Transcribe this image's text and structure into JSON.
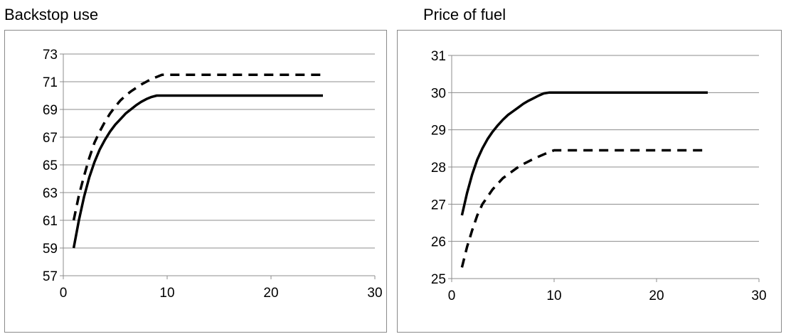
{
  "chart_data": [
    {
      "type": "line",
      "title": "Backstop use",
      "xlabel": "",
      "ylabel": "",
      "xlim": [
        0,
        30
      ],
      "ylim": [
        57,
        73
      ],
      "xticks": [
        0,
        10,
        20,
        30
      ],
      "yticks": [
        57,
        59,
        61,
        63,
        65,
        67,
        69,
        71,
        73
      ],
      "grid": "horizontal",
      "legend": "none",
      "series": [
        {
          "style": "solid",
          "color": "#000000",
          "x": [
            1,
            1.5,
            2,
            2.5,
            3,
            3.5,
            4,
            4.5,
            5,
            5.5,
            6,
            6.5,
            7,
            7.5,
            8,
            8.5,
            9,
            9.5,
            10,
            25
          ],
          "y": [
            59.0,
            61.0,
            62.7,
            64.1,
            65.2,
            66.1,
            66.8,
            67.4,
            67.9,
            68.3,
            68.7,
            69.0,
            69.3,
            69.55,
            69.75,
            69.9,
            70.0,
            70.0,
            70.0,
            70.0
          ]
        },
        {
          "style": "dashed",
          "color": "#000000",
          "x": [
            1,
            1.5,
            2,
            2.5,
            3,
            3.5,
            4,
            4.5,
            5,
            5.5,
            6,
            6.5,
            7,
            7.5,
            8,
            8.5,
            9,
            9.5,
            10,
            25
          ],
          "y": [
            61.0,
            62.8,
            64.2,
            65.5,
            66.6,
            67.4,
            68.1,
            68.7,
            69.2,
            69.65,
            70.0,
            70.3,
            70.55,
            70.8,
            71.0,
            71.2,
            71.35,
            71.5,
            71.5,
            71.5
          ]
        }
      ]
    },
    {
      "type": "line",
      "title": "Price of fuel",
      "xlabel": "",
      "ylabel": "",
      "xlim": [
        0,
        30
      ],
      "ylim": [
        25,
        31
      ],
      "xticks": [
        0,
        10,
        20,
        30
      ],
      "yticks": [
        25,
        26,
        27,
        28,
        29,
        30,
        31
      ],
      "grid": "horizontal",
      "legend": "none",
      "series": [
        {
          "style": "solid",
          "color": "#000000",
          "x": [
            1,
            1.5,
            2,
            2.5,
            3,
            3.5,
            4,
            4.5,
            5,
            5.5,
            6,
            6.5,
            7,
            7.5,
            8,
            8.5,
            9,
            9.5,
            10,
            25
          ],
          "y": [
            26.7,
            27.3,
            27.8,
            28.2,
            28.5,
            28.75,
            28.95,
            29.12,
            29.27,
            29.4,
            29.5,
            29.6,
            29.7,
            29.78,
            29.85,
            29.92,
            29.98,
            30.0,
            30.0,
            30.0
          ]
        },
        {
          "style": "dashed",
          "color": "#000000",
          "x": [
            1,
            1.5,
            2,
            2.5,
            3,
            3.5,
            4,
            4.5,
            5,
            5.5,
            6,
            6.5,
            7,
            7.5,
            8,
            8.5,
            9,
            9.5,
            10,
            10.5,
            25
          ],
          "y": [
            25.3,
            25.85,
            26.3,
            26.7,
            27.0,
            27.2,
            27.4,
            27.55,
            27.7,
            27.8,
            27.9,
            28.0,
            28.08,
            28.15,
            28.22,
            28.28,
            28.34,
            28.4,
            28.45,
            28.45,
            28.45
          ]
        }
      ]
    }
  ]
}
